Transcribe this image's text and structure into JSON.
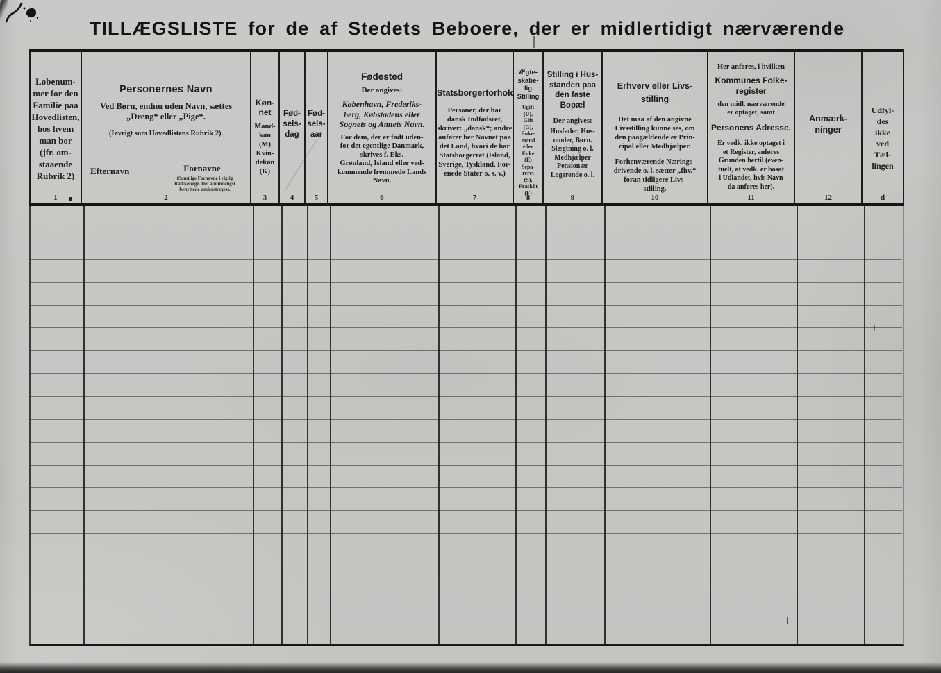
{
  "page": {
    "title": "TILLÆGSLISTE for de af Stedets Beboere, der er midlertidigt nærværende"
  },
  "header": {
    "c1": {
      "num": "1",
      "body": "Løbenum-\nmer for den\nFamilie paa\nHovedlisten,\nhos hvem\nman bor\n(jfr. om-\nstaaende\nRubrik 2)"
    },
    "c2": {
      "num": "2",
      "title": "Personernes Navn",
      "p1": "Ved Børn, endnu uden Navn, sættes\n„Dreng“ eller „Pige“.",
      "p2": "(Iøvrigt som Hovedlistens Rubrik 2).",
      "label_left": "Efternavn",
      "label_right": "Fornavne",
      "label_note": "(Samtlige Fornavne i rigtig\nRækkefølge. Det almindeligst\nbenyttede understreges)."
    },
    "c3": {
      "num": "3",
      "title": "Køn-\nnet",
      "body": "Mand-\nkøn\n(M)\nKvin-\ndekøn\n(K)"
    },
    "c4": {
      "num": "4",
      "title": "Fød-\nsels-\ndag"
    },
    "c5": {
      "num": "5",
      "title": "Fød-\nsels-\naar"
    },
    "c6": {
      "num": "6",
      "title": "Fødested",
      "sub": "Der angives:",
      "p1": "København, Frederiks-\nberg, Købstadens eller\nSognets og Amtets Navn.",
      "p2": "For dem, der er født uden-\nfor det egentlige Danmark,\nskrives f. Eks.\nGrønland, Island eller ved-\nkommende fremmede Lands\nNavn."
    },
    "c7": {
      "num": "7",
      "title": "Statsborgerforhold",
      "p1": "Personer, der har\ndansk Indfødsret,\nskriver: „dansk“; andre\nanfører her Navnet paa\ndet Land, hvori de har\nStatsborgerret (Island,\nSverige, Tyskland, For-\nenede Stater o. s. v.)"
    },
    "c8": {
      "num": "8",
      "title": "Ægte-\nskabe-\nlig\nStilling",
      "body": "Ugift\n(U),\nGift\n(G),\nEnke-\nmand\neller\nEnke\n(E)\nSepa-\nreret\n(S),\nFraskilt\n(F)"
    },
    "c9": {
      "num": "9",
      "title_a": "Stilling i Hus-\nstanden paa\nden ",
      "title_u": "faste",
      "title_b": "\nBopæl",
      "sub": "Der angives:",
      "p1": "Husfader, Hus-\nmoder, Børn.\nSlægtning o. l.\nMedhjælper\nPensionær\nLogerende o. l."
    },
    "c10": {
      "num": "10",
      "title": "Erhverv eller Livs-\nstilling",
      "p1": "Det maa af den angivne\nLivsstilling kunne ses, om\nden paagældende er Prin-\ncipal eller Medhjælper.",
      "p2": "Forhenværende Nærings-\ndrivende o. l. sætter „fhv.“\nforan tidligere Livs-\nstilling."
    },
    "c11": {
      "num": "11",
      "pre": "Her anføres, i hvilken",
      "title1": "Kommunes Folke-\nregister",
      "mid": "den midl. nærværende\ner optaget, samt",
      "title2": "Personens Adresse.",
      "p1": "Er vedk. ikke optaget i\net Register, anføres\nGrunden hertil (even-\ntuelt, at vedk. er bosat\ni Udlandet, hvis Navn\nda anføres her)."
    },
    "c12": {
      "num": "12",
      "title": "Anmærk-\nninger"
    },
    "cd": {
      "num": "d",
      "body": "Udfyl-\ndes\nikke\nved\nTæl-\nlingen"
    }
  },
  "body": {
    "rows": 18
  }
}
